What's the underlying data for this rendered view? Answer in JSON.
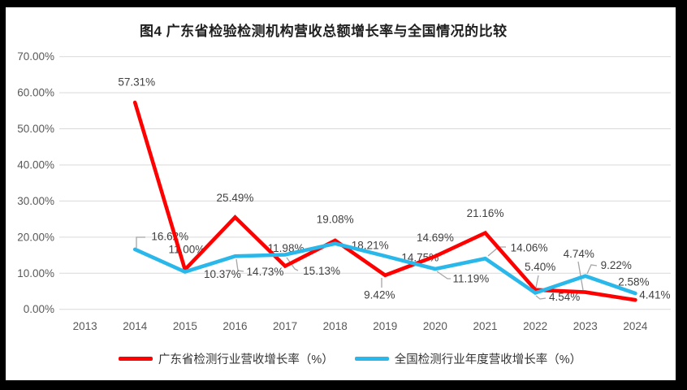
{
  "chart_data": {
    "type": "line",
    "title": "图4  广东省检验检测机构营收总额增长率与全国情况的比较",
    "categories": [
      "2013",
      "2014",
      "2015",
      "2016",
      "2017",
      "2018",
      "2019",
      "2020",
      "2021",
      "2022",
      "2023",
      "2024"
    ],
    "ytick_labels": [
      "0.00%",
      "10.00%",
      "20.00%",
      "30.00%",
      "40.00%",
      "50.00%",
      "60.00%",
      "70.00%"
    ],
    "ylim": [
      0,
      70
    ],
    "y_unit": "percent",
    "grid": true,
    "legend_position": "bottom",
    "series": [
      {
        "id": "guangdong",
        "name": "广东省检测行业营收增长率（%）",
        "color": "#fe0000",
        "x": [
          "2014",
          "2015",
          "2016",
          "2017",
          "2018",
          "2019",
          "2020",
          "2021",
          "2022",
          "2023",
          "2024"
        ],
        "values": [
          57.31,
          11.0,
          25.49,
          11.98,
          19.08,
          9.42,
          14.69,
          21.16,
          5.4,
          4.74,
          2.58
        ],
        "labels": [
          "57.31%",
          "11.00%",
          "25.49%",
          "11.98%",
          "19.08%",
          "9.42%",
          "14.69%",
          "21.16%",
          "5.40%",
          "4.74%",
          "2.58%"
        ]
      },
      {
        "id": "national",
        "name": "全国检测行业年度营收增长率（%）",
        "color": "#2ab7e9",
        "x": [
          "2014",
          "2015",
          "2016",
          "2017",
          "2018",
          "2019",
          "2020",
          "2021",
          "2022",
          "2023",
          "2024"
        ],
        "values": [
          16.62,
          10.37,
          14.73,
          15.13,
          18.21,
          14.75,
          11.19,
          14.06,
          4.54,
          9.22,
          4.41
        ],
        "labels": [
          "16.62%",
          "10.37%",
          "14.73%",
          "15.13%",
          "18.21%",
          "14.75%",
          "11.19%",
          "14.06%",
          "4.54%",
          "9.22%",
          "4.41%"
        ]
      }
    ],
    "colors": {
      "gridline": "#d9d9d9",
      "leader_line": "#a6a6a6",
      "axis_text": "#595959",
      "data_label_text": "#404040",
      "frame": "#000000",
      "plot_background": "#ffffff"
    }
  }
}
